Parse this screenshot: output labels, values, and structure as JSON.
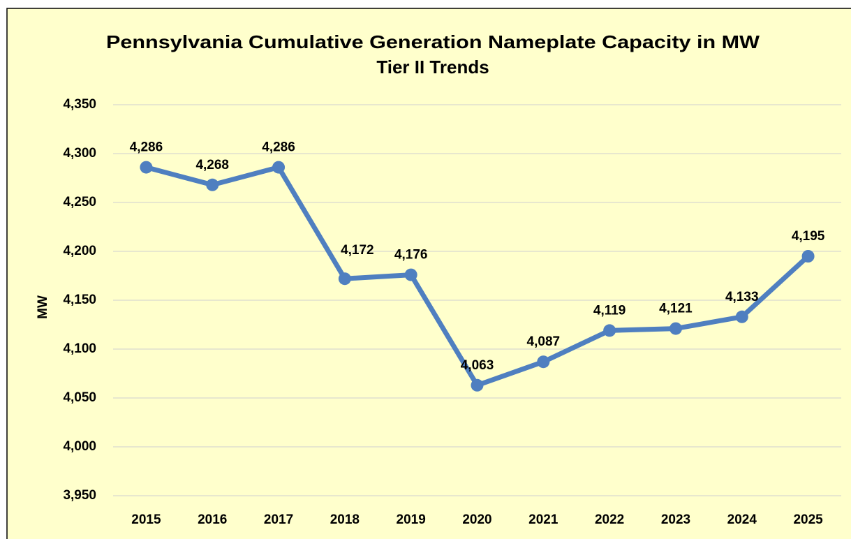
{
  "chart_data": {
    "type": "line",
    "title": "Pennsylvania Cumulative Generation Nameplate Capacity in MW",
    "subtitle": "Tier II Trends",
    "y_label": "MW",
    "categories": [
      "2015",
      "2016",
      "2017",
      "2018",
      "2019",
      "2020",
      "2021",
      "2022",
      "2023",
      "2024",
      "2025"
    ],
    "series": [
      {
        "name": "Tier II",
        "color": "#4f7fc0",
        "values": [
          4286,
          4268,
          4286,
          4172,
          4176,
          4063,
          4087,
          4119,
          4121,
          4133,
          4195
        ],
        "value_labels": [
          "4,286",
          "4,268",
          "4,286",
          "4,172",
          "4,176",
          "4,063",
          "4,087",
          "4,119",
          "4,121",
          "4,133",
          "4,195"
        ]
      }
    ],
    "ylim": [
      3950,
      4350
    ],
    "yticks": [
      {
        "value": 3950,
        "label": "3,950"
      },
      {
        "value": 4000,
        "label": "4,000"
      },
      {
        "value": 4050,
        "label": "4,050"
      },
      {
        "value": 4100,
        "label": "4,100"
      },
      {
        "value": 4150,
        "label": "4,150"
      },
      {
        "value": 4200,
        "label": "4,200"
      },
      {
        "value": 4250,
        "label": "4,250"
      },
      {
        "value": 4300,
        "label": "4,300"
      },
      {
        "value": 4350,
        "label": "4,350"
      }
    ],
    "grid": true
  }
}
